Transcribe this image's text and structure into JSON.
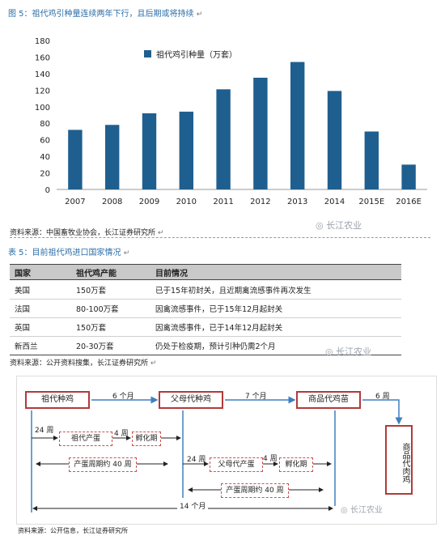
{
  "figure5": {
    "caption": "图 5：祖代鸡引种量连续两年下行，且后期或将持续",
    "source": "资料来源：中国畜牧业协会，长江证券研究所",
    "watermark": "长江农业"
  },
  "chart_data": {
    "type": "bar",
    "categories": [
      "2007",
      "2008",
      "2009",
      "2010",
      "2011",
      "2012",
      "2013",
      "2014",
      "2015E",
      "2016E"
    ],
    "series": [
      {
        "name": "祖代鸡引种量（万套）",
        "values": [
          72,
          78,
          92,
          94,
          121,
          135,
          154,
          119,
          70,
          30
        ]
      }
    ],
    "ylim": [
      0,
      180
    ],
    "yticks": [
      0,
      20,
      40,
      60,
      80,
      100,
      120,
      140,
      160,
      180
    ],
    "legend": "top-left",
    "grid": false,
    "color": "#1f5f8f"
  },
  "table5": {
    "caption": "表 5：目前祖代鸡进口国家情况",
    "headers": [
      "国家",
      "祖代鸡产能",
      "目前情况"
    ],
    "rows": [
      [
        "美国",
        "150万套",
        "已于15年初封关，且近期禽流感事件再次发生"
      ],
      [
        "法国",
        "80-100万套",
        "因禽流感事件，已于15年12月起封关"
      ],
      [
        "英国",
        "150万套",
        "因禽流感事件，已于14年12月起封关"
      ],
      [
        "新西兰",
        "20-30万套",
        "仍处于检疫期，预计引种仍需2个月"
      ]
    ],
    "source": "资料来源：公开资料搜集，长江证券研究所",
    "watermark": "长江农业"
  },
  "diagram": {
    "box_grandparent": "祖代种鸡",
    "box_parent": "父母代种鸡",
    "box_commercial": "商品代鸡苗",
    "box_meat": "商品代肉鸡",
    "arrow1": "6 个月",
    "arrow2": "7 个月",
    "arrow3": "6 周",
    "w24a": "24 周",
    "w24b": "24 周",
    "w4a": "4 周",
    "w4b": "4 周",
    "gp_lay": "祖代产蛋",
    "hatch1": "孵化期",
    "cycle1": "产蛋周期约 40 周",
    "pp_lay": "父母代产蛋",
    "hatch2": "孵化期",
    "cycle2": "产蛋周期约 40 周",
    "total": "14 个月",
    "source": "资料来源：公开信息，长江证券研究所",
    "watermark": "长江农业"
  }
}
